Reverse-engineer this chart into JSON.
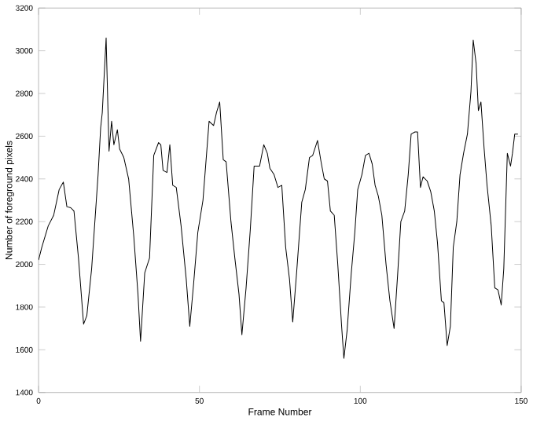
{
  "chart_data": {
    "type": "line",
    "xlabel": "Frame Number",
    "ylabel": "Number of foreground pixels",
    "xlim": [
      0,
      150
    ],
    "ylim": [
      1400,
      3200
    ],
    "xticks": [
      0,
      50,
      100,
      150
    ],
    "yticks": [
      1400,
      1600,
      1800,
      2000,
      2200,
      2400,
      2600,
      2800,
      3000,
      3200
    ],
    "grid": false,
    "marker": "none",
    "line_style": "solid",
    "series": [
      {
        "color": "#000000",
        "x": [
          0,
          1,
          3,
          4.7,
          6.4,
          7.7,
          8.8,
          10,
          11,
          12.4,
          14,
          15,
          16.5,
          18.5,
          19.3,
          19.8,
          21,
          21.9,
          22.7,
          23.4,
          24.5,
          25.2,
          26.5,
          28,
          29.6,
          30.9,
          31.7,
          33,
          34.5,
          35.8,
          37.3,
          38,
          38.7,
          39.9,
          40.8,
          41.7,
          42.8,
          44.3,
          45.9,
          47,
          48.2,
          49.5,
          51.1,
          53,
          54.4,
          55.3,
          56.3,
          57.4,
          58.3,
          59.8,
          61,
          62.3,
          63.2,
          64.5,
          65.8,
          67,
          68.7,
          70,
          71.1,
          71.9,
          73.2,
          74.4,
          75.6,
          76.8,
          78,
          79,
          80.2,
          81.8,
          82.9,
          84.2,
          85.2,
          86.7,
          87.8,
          88.8,
          89.8,
          90.7,
          91.9,
          93,
          94.2,
          94.9,
          95.9,
          97.2,
          98.3,
          99.2,
          100.5,
          101.6,
          102.7,
          103.7,
          104.6,
          105.6,
          106.7,
          108,
          109.2,
          110.5,
          111.6,
          112.6,
          113.8,
          114.9,
          115.8,
          117,
          117.8,
          118.7,
          119.5,
          120.8,
          121.9,
          123,
          124,
          125.2,
          126,
          127,
          128,
          128.9,
          130,
          131,
          132.1,
          133.3,
          134.4,
          135.1,
          136,
          136.7,
          137.5,
          138.5,
          139.4,
          140.7,
          141.8,
          142.8,
          143.8,
          144.6,
          145.7,
          146.7,
          147.3,
          148,
          149
        ],
        "values": [
          2020,
          2080,
          2180,
          2230,
          2350,
          2385,
          2270,
          2265,
          2250,
          2030,
          1720,
          1760,
          1980,
          2420,
          2640,
          2710,
          3060,
          2530,
          2670,
          2560,
          2630,
          2540,
          2500,
          2400,
          2130,
          1860,
          1640,
          1960,
          2030,
          2510,
          2570,
          2560,
          2440,
          2430,
          2560,
          2370,
          2360,
          2180,
          1930,
          1710,
          1910,
          2150,
          2300,
          2670,
          2650,
          2710,
          2760,
          2490,
          2480,
          2200,
          2030,
          1860,
          1670,
          1890,
          2160,
          2460,
          2460,
          2560,
          2520,
          2450,
          2420,
          2360,
          2370,
          2080,
          1930,
          1730,
          1960,
          2290,
          2350,
          2500,
          2510,
          2580,
          2480,
          2400,
          2390,
          2250,
          2230,
          2000,
          1710,
          1560,
          1690,
          1960,
          2150,
          2350,
          2420,
          2510,
          2520,
          2470,
          2370,
          2320,
          2230,
          2000,
          1830,
          1700,
          1950,
          2200,
          2250,
          2420,
          2610,
          2620,
          2620,
          2360,
          2410,
          2390,
          2340,
          2250,
          2100,
          1830,
          1820,
          1620,
          1710,
          2080,
          2200,
          2420,
          2520,
          2610,
          2810,
          3050,
          2940,
          2720,
          2760,
          2540,
          2370,
          2180,
          1890,
          1880,
          1810,
          1980,
          2520,
          2460,
          2520,
          2610,
          2610
        ]
      }
    ]
  }
}
